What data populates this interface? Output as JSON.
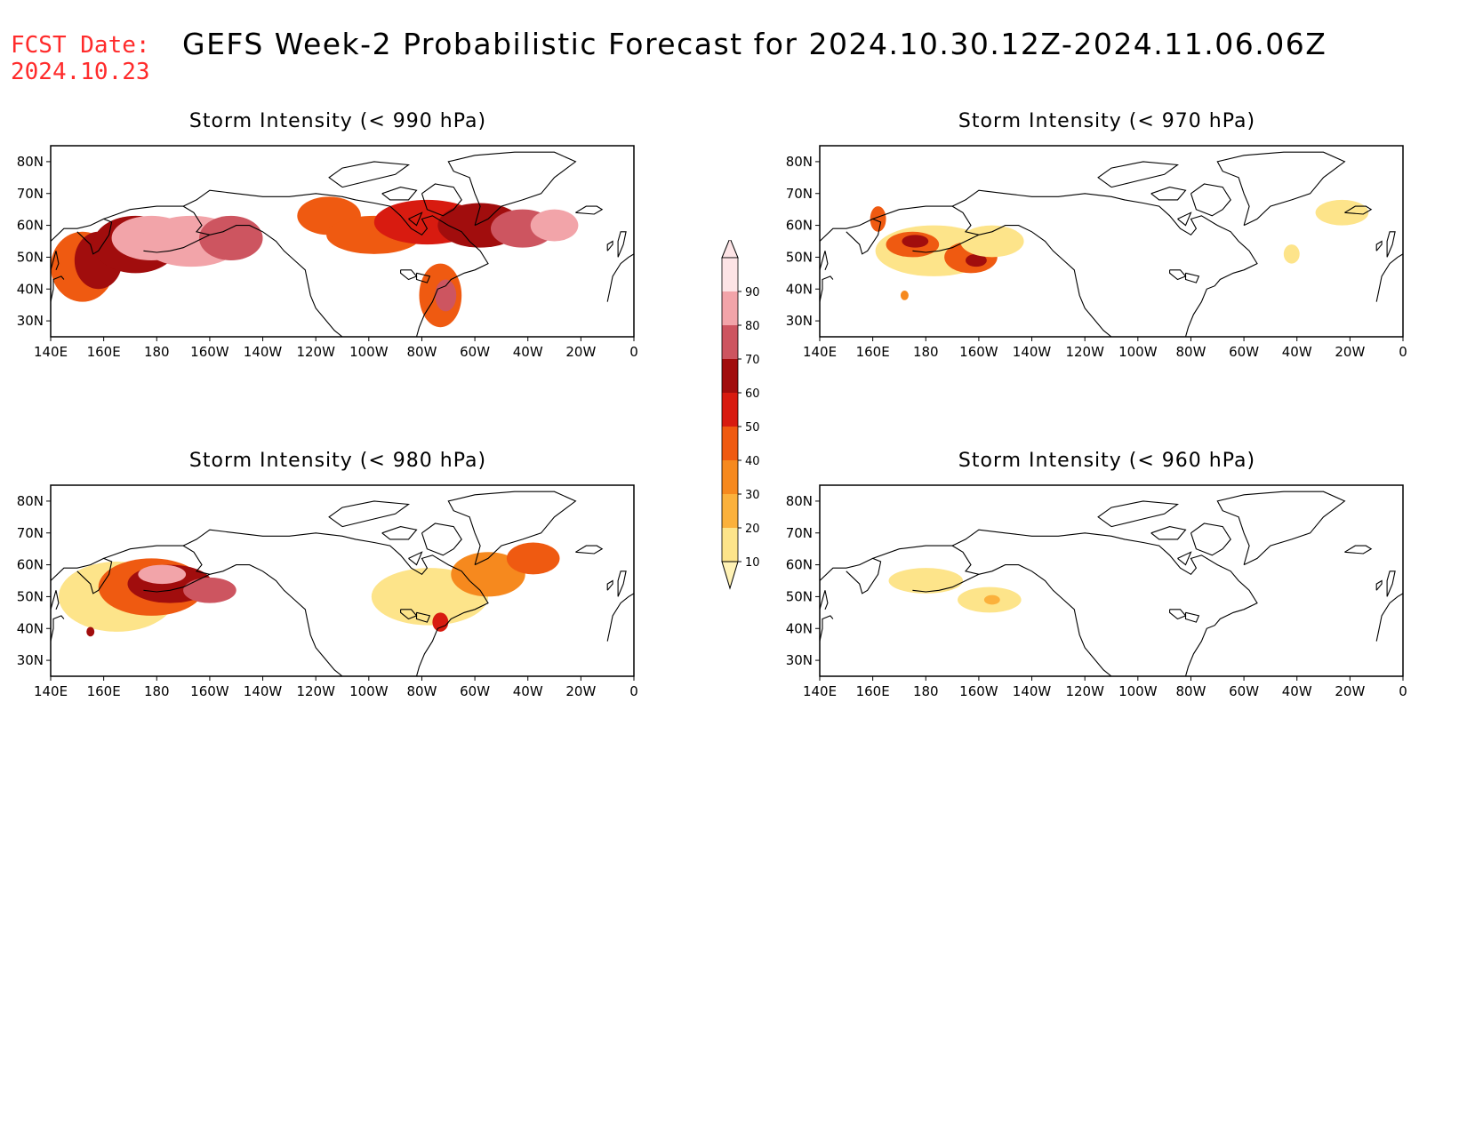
{
  "header": {
    "fcst_label": "FCST Date:",
    "fcst_date": "2024.10.23",
    "title": "GEFS Week-2 Probabilistic Forecast for 2024.10.30.12Z-2024.11.06.06Z"
  },
  "axes": {
    "lon_labels": [
      "140E",
      "160E",
      "180",
      "160W",
      "140W",
      "120W",
      "100W",
      "80W",
      "60W",
      "40W",
      "20W",
      "0"
    ],
    "lat_labels": [
      "80N",
      "70N",
      "60N",
      "50N",
      "40N",
      "30N"
    ],
    "lon_range": [
      140,
      360
    ],
    "lat_range": [
      25,
      85
    ]
  },
  "legend": {
    "levels": [
      "10",
      "20",
      "30",
      "40",
      "50",
      "60",
      "70",
      "80",
      "90"
    ],
    "colors": [
      "#fff2b5",
      "#fde48a",
      "#fbb13c",
      "#f6891e",
      "#ef5a11",
      "#d81b10",
      "#a10d0d",
      "#cd5560",
      "#f2a4a9",
      "#fde4e6"
    ]
  },
  "panels": [
    {
      "id": "p990",
      "title": "Storm Intensity (< 990 hPa)",
      "blobs": [
        {
          "lon": 152,
          "lat": 47,
          "rx": 12,
          "ry": 11,
          "level": 4
        },
        {
          "lon": 158,
          "lat": 49,
          "rx": 9,
          "ry": 9,
          "level": 6
        },
        {
          "lon": 172,
          "lat": 54,
          "rx": 16,
          "ry": 9,
          "level": 6
        },
        {
          "lon": 178,
          "lat": 56,
          "rx": 15,
          "ry": 7,
          "level": 8
        },
        {
          "lon": 193,
          "lat": 55,
          "rx": 19,
          "ry": 8,
          "level": 8
        },
        {
          "lon": 208,
          "lat": 56,
          "rx": 12,
          "ry": 7,
          "level": 7
        },
        {
          "lon": 245,
          "lat": 63,
          "rx": 12,
          "ry": 6,
          "level": 4
        },
        {
          "lon": 262,
          "lat": 57,
          "rx": 18,
          "ry": 6,
          "level": 4
        },
        {
          "lon": 282,
          "lat": 61,
          "rx": 20,
          "ry": 7,
          "level": 5
        },
        {
          "lon": 302,
          "lat": 60,
          "rx": 16,
          "ry": 7,
          "level": 6
        },
        {
          "lon": 318,
          "lat": 59,
          "rx": 12,
          "ry": 6,
          "level": 7
        },
        {
          "lon": 330,
          "lat": 60,
          "rx": 9,
          "ry": 5,
          "level": 8
        },
        {
          "lon": 287,
          "lat": 38,
          "rx": 8,
          "ry": 10,
          "level": 4
        },
        {
          "lon": 289,
          "lat": 38,
          "rx": 4,
          "ry": 5,
          "level": 7
        }
      ]
    },
    {
      "id": "p970",
      "title": "Storm Intensity (< 970 hPa)",
      "blobs": [
        {
          "lon": 183,
          "lat": 52,
          "rx": 22,
          "ry": 8,
          "level": 1
        },
        {
          "lon": 175,
          "lat": 54,
          "rx": 10,
          "ry": 4,
          "level": 4
        },
        {
          "lon": 176,
          "lat": 55,
          "rx": 5,
          "ry": 2,
          "level": 6
        },
        {
          "lon": 197,
          "lat": 50,
          "rx": 10,
          "ry": 5,
          "level": 4
        },
        {
          "lon": 199,
          "lat": 49,
          "rx": 4,
          "ry": 2,
          "level": 6
        },
        {
          "lon": 162,
          "lat": 62,
          "rx": 3,
          "ry": 4,
          "level": 4
        },
        {
          "lon": 205,
          "lat": 55,
          "rx": 12,
          "ry": 5,
          "level": 1
        },
        {
          "lon": 337,
          "lat": 64,
          "rx": 10,
          "ry": 4,
          "level": 1
        },
        {
          "lon": 318,
          "lat": 51,
          "rx": 3,
          "ry": 3,
          "level": 1
        },
        {
          "lon": 172,
          "lat": 38,
          "rx": 1.5,
          "ry": 1.5,
          "level": 3
        }
      ]
    },
    {
      "id": "p980",
      "title": "Storm Intensity (< 980 hPa)",
      "blobs": [
        {
          "lon": 165,
          "lat": 50,
          "rx": 22,
          "ry": 11,
          "level": 1
        },
        {
          "lon": 178,
          "lat": 53,
          "rx": 20,
          "ry": 9,
          "level": 4
        },
        {
          "lon": 185,
          "lat": 54,
          "rx": 16,
          "ry": 6,
          "level": 6
        },
        {
          "lon": 182,
          "lat": 57,
          "rx": 9,
          "ry": 3,
          "level": 8
        },
        {
          "lon": 200,
          "lat": 52,
          "rx": 10,
          "ry": 4,
          "level": 7
        },
        {
          "lon": 283,
          "lat": 50,
          "rx": 22,
          "ry": 9,
          "level": 1
        },
        {
          "lon": 305,
          "lat": 57,
          "rx": 14,
          "ry": 7,
          "level": 3
        },
        {
          "lon": 322,
          "lat": 62,
          "rx": 10,
          "ry": 5,
          "level": 4
        },
        {
          "lon": 287,
          "lat": 42,
          "rx": 3,
          "ry": 3,
          "level": 5
        },
        {
          "lon": 155,
          "lat": 39,
          "rx": 1.5,
          "ry": 1.5,
          "level": 6
        }
      ]
    },
    {
      "id": "p960",
      "title": "Storm Intensity (< 960 hPa)",
      "blobs": [
        {
          "lon": 180,
          "lat": 55,
          "rx": 14,
          "ry": 4,
          "level": 1
        },
        {
          "lon": 204,
          "lat": 49,
          "rx": 12,
          "ry": 4,
          "level": 1
        },
        {
          "lon": 205,
          "lat": 49,
          "rx": 3,
          "ry": 1.5,
          "level": 2
        }
      ]
    }
  ]
}
